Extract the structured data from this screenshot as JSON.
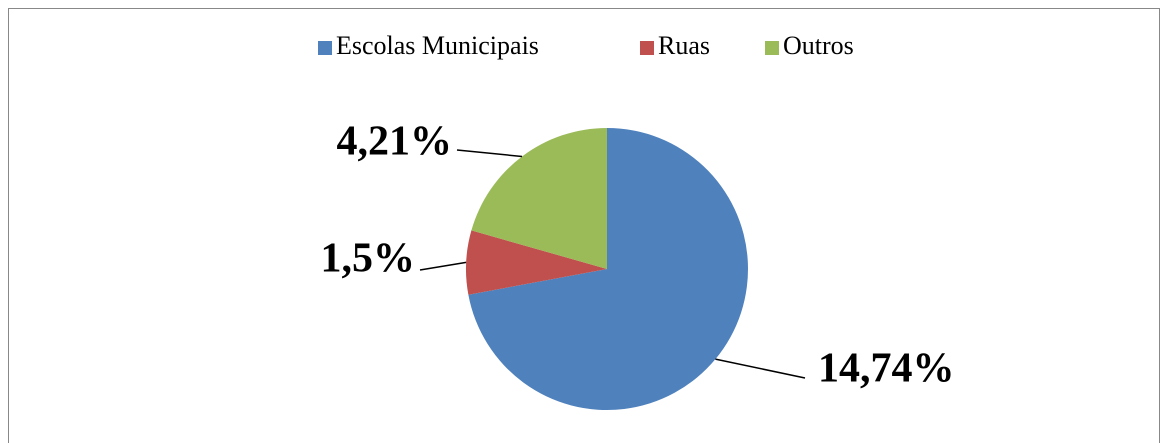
{
  "chart_data": {
    "type": "pie",
    "categories": [
      "Escolas Municipais",
      "Ruas",
      "Outros"
    ],
    "values": [
      14.74,
      1.5,
      4.21
    ],
    "value_labels": [
      "14,74%",
      "1,5%",
      "4,21%"
    ],
    "colors": [
      "#4f81bd",
      "#c0504d",
      "#9bbb59"
    ],
    "legend": "top"
  }
}
